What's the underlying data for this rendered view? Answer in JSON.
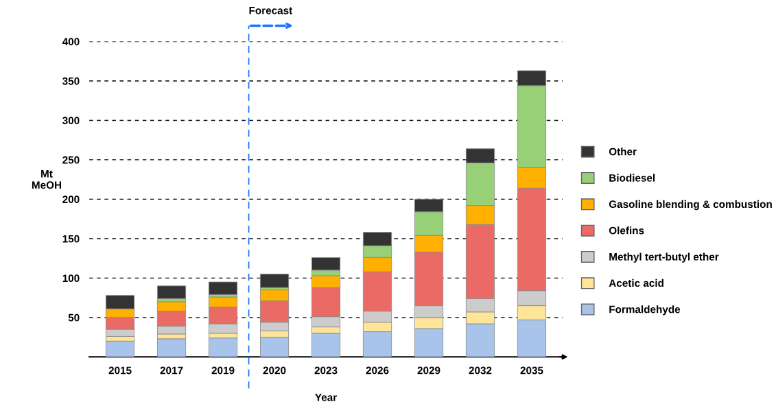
{
  "chart_data": {
    "type": "bar",
    "stacked": true,
    "xlabel": "Year",
    "ylabel": "Mt\nMeOH",
    "categories": [
      "2015",
      "2017",
      "2019",
      "2020",
      "2023",
      "2026",
      "2029",
      "2032",
      "2035"
    ],
    "series": [
      {
        "name": "Formaldehyde",
        "color": "#a9c4eb",
        "values": [
          20,
          23,
          24,
          25,
          30,
          32,
          36,
          42,
          47
        ]
      },
      {
        "name": "Acetic acid",
        "color": "#ffe599",
        "values": [
          6,
          6,
          6,
          8,
          8,
          12,
          14,
          15,
          18
        ]
      },
      {
        "name": "Methyl tert-butyl ether",
        "color": "#cccccc",
        "values": [
          9,
          10,
          12,
          11,
          13,
          14,
          15,
          17,
          19
        ]
      },
      {
        "name": "Olefins",
        "color": "#ea6b66",
        "values": [
          15,
          19,
          21,
          27,
          37,
          50,
          68,
          94,
          130
        ]
      },
      {
        "name": "Gasoline blending & combustion",
        "color": "#ffb000",
        "values": [
          11,
          12,
          13,
          14,
          15,
          18,
          21,
          24,
          26
        ]
      },
      {
        "name": "Biodiesel",
        "color": "#97d077",
        "values": [
          null,
          4,
          3,
          3,
          7,
          15,
          30,
          54,
          104
        ]
      },
      {
        "name": "Other",
        "color": "#333333",
        "values": [
          17,
          16,
          16,
          17,
          16,
          17,
          16,
          18,
          19
        ]
      }
    ],
    "ylim": [
      0,
      400
    ],
    "yticks": [
      50,
      100,
      150,
      200,
      250,
      300,
      350,
      400
    ],
    "grid": "y",
    "legend": "right",
    "annotations": [
      "Forecast"
    ]
  }
}
